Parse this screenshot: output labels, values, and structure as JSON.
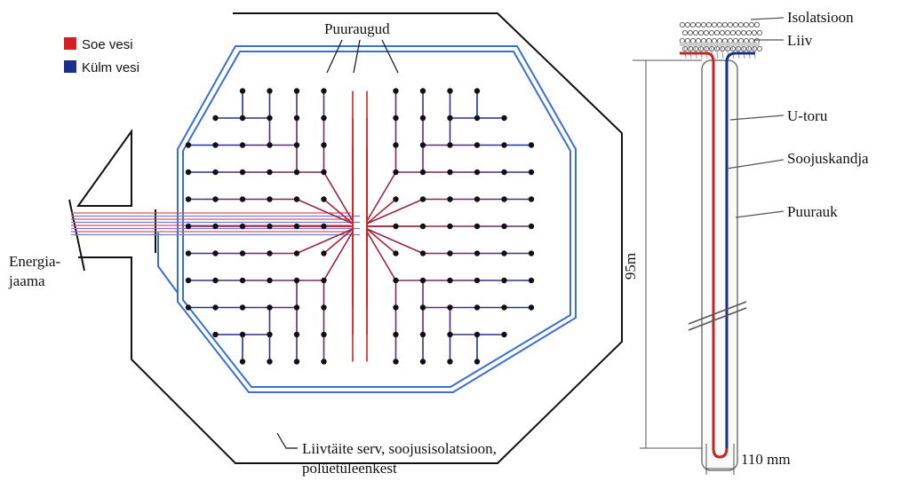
{
  "legend": {
    "items": [
      {
        "label": "Soe vesi",
        "color": "#d42020"
      },
      {
        "label": "Külm vesi",
        "color": "#1a2f8a"
      }
    ]
  },
  "plan": {
    "boreholes_label": "Puuraugud",
    "station_label": [
      "Energia-",
      "jaama"
    ],
    "edge_label": [
      "Liivtäite serv, soojusisolatsioon,",
      "polüetüleenkest"
    ]
  },
  "section": {
    "labels": [
      "Isolatsioon",
      "Liiv",
      "U-toru",
      "Soojuskandja",
      "Puurauk"
    ],
    "depth": "95m",
    "diameter": "110 mm"
  }
}
